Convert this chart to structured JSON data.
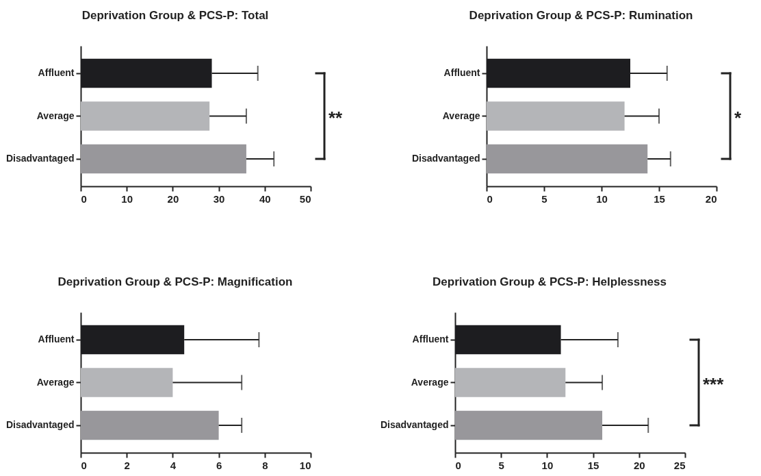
{
  "chart_data": [
    {
      "type": "bar",
      "orientation": "horizontal",
      "title": "Deprivation Group & PCS-P: Total",
      "categories": [
        "Affluent",
        "Average",
        "Disadvantaged"
      ],
      "values": [
        28.5,
        28,
        36
      ],
      "colors": [
        "#1d1d20",
        "#b4b5b8",
        "#98979b"
      ],
      "errors": [
        [
          28.5,
          38.5
        ],
        [
          28,
          36
        ],
        [
          36,
          42
        ]
      ],
      "xlim": [
        0,
        50
      ],
      "xticks": [
        0,
        10,
        20,
        30,
        40,
        50
      ],
      "grid": false,
      "annotations": [
        "**"
      ]
    },
    {
      "type": "bar",
      "orientation": "horizontal",
      "title": "Deprivation Group & PCS-P: Rumination",
      "categories": [
        "Affluent",
        "Average",
        "Disadvantaged"
      ],
      "values": [
        12.5,
        12,
        14
      ],
      "colors": [
        "#1d1d20",
        "#b4b5b8",
        "#98979b"
      ],
      "errors": [
        [
          12.5,
          15.7
        ],
        [
          12,
          15
        ],
        [
          14,
          16
        ]
      ],
      "xlim": [
        0,
        20
      ],
      "xticks": [
        0,
        5,
        10,
        15,
        20
      ],
      "grid": false,
      "annotations": [
        "*"
      ]
    },
    {
      "type": "bar",
      "orientation": "horizontal",
      "title": "Deprivation Group & PCS-P: Magnification",
      "categories": [
        "Affluent",
        "Average",
        "Disadvantaged"
      ],
      "values": [
        4.5,
        4,
        6
      ],
      "colors": [
        "#1d1d20",
        "#b4b5b8",
        "#98979b"
      ],
      "errors": [
        [
          4.5,
          7.75
        ],
        [
          4,
          7
        ],
        [
          6,
          7
        ]
      ],
      "xlim": [
        0,
        10
      ],
      "xticks": [
        0,
        2,
        4,
        6,
        8,
        10
      ],
      "grid": false
    },
    {
      "type": "bar",
      "orientation": "horizontal",
      "title": "Deprivation Group & PCS-P: Helplessness",
      "categories": [
        "Affluent",
        "Average",
        "Disadvantaged"
      ],
      "values": [
        11.5,
        12,
        16
      ],
      "colors": [
        "#1d1d20",
        "#b4b5b8",
        "#98979b"
      ],
      "errors": [
        [
          11.5,
          17.7
        ],
        [
          12,
          16
        ],
        [
          16,
          21
        ]
      ],
      "xlim": [
        0,
        25
      ],
      "xticks": [
        0,
        5,
        10,
        15,
        20,
        25
      ],
      "grid": false,
      "annotations": [
        "***"
      ]
    }
  ]
}
